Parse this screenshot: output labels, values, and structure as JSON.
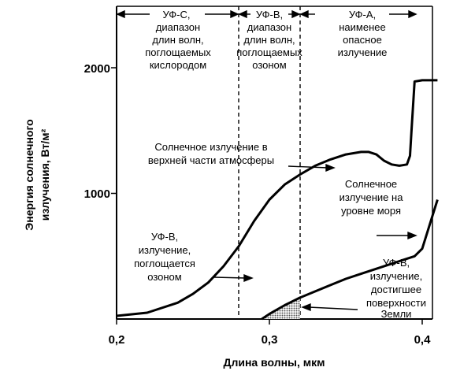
{
  "chart_data": {
    "type": "line",
    "xlabel": "Длина волны, мкм",
    "ylabel": [
      "Энергия солнечного",
      "излучения, Вт/м²"
    ],
    "xlim": [
      0.2,
      0.41
    ],
    "ylim": [
      0,
      2500
    ],
    "xticks": [
      "0,2",
      "0,3",
      "0,4"
    ],
    "yticks": [
      "1000",
      "2000"
    ],
    "grid": false,
    "bands": [
      {
        "lines": [
          "УФ-С,",
          "диапазон",
          "длин волн,",
          "поглощаемых",
          "кислородом"
        ],
        "from": 0.2,
        "to": 0.28
      },
      {
        "lines": [
          "УФ-В,",
          "диапазон",
          "длин волн,",
          "поглощаемых",
          "озоном"
        ],
        "from": 0.28,
        "to": 0.32
      },
      {
        "lines": [
          "УФ-А,",
          "наименее",
          "опасное",
          "излучение"
        ],
        "from": 0.32,
        "to": 0.4
      }
    ],
    "series": [
      {
        "x": [
          0.2,
          0.22,
          0.24,
          0.25,
          0.26,
          0.27,
          0.28,
          0.29,
          0.3,
          0.31,
          0.32,
          0.33,
          0.34,
          0.35,
          0.36,
          0.365,
          0.37,
          0.375,
          0.38,
          0.385,
          0.39,
          0.392,
          0.393,
          0.394,
          0.395,
          0.4,
          0.41
        ],
        "y": [
          25,
          50,
          130,
          200,
          290,
          420,
          580,
          780,
          950,
          1070,
          1150,
          1220,
          1270,
          1310,
          1330,
          1330,
          1310,
          1260,
          1230,
          1220,
          1230,
          1300,
          1500,
          1700,
          1890,
          1900,
          1900
        ]
      },
      {
        "x": [
          0.295,
          0.3,
          0.31,
          0.32,
          0.33,
          0.34,
          0.35,
          0.36,
          0.37,
          0.38,
          0.39,
          0.395,
          0.4,
          0.41
        ],
        "y": [
          0,
          40,
          110,
          170,
          220,
          270,
          320,
          360,
          400,
          440,
          480,
          500,
          560,
          950
        ]
      }
    ],
    "annotations": [
      {
        "lines": [
          "Солнечное излучение в",
          "верхней части атмосферы"
        ]
      },
      {
        "lines": [
          "Солнечное",
          "излучение на",
          "уровне моря"
        ]
      },
      {
        "lines": [
          "УФ-В,",
          "излучение,",
          "поглощается",
          "озоном"
        ]
      },
      {
        "lines": [
          "УФ-В,",
          "излучение,",
          "достигшее",
          "поверхности",
          "Земли"
        ]
      }
    ]
  }
}
